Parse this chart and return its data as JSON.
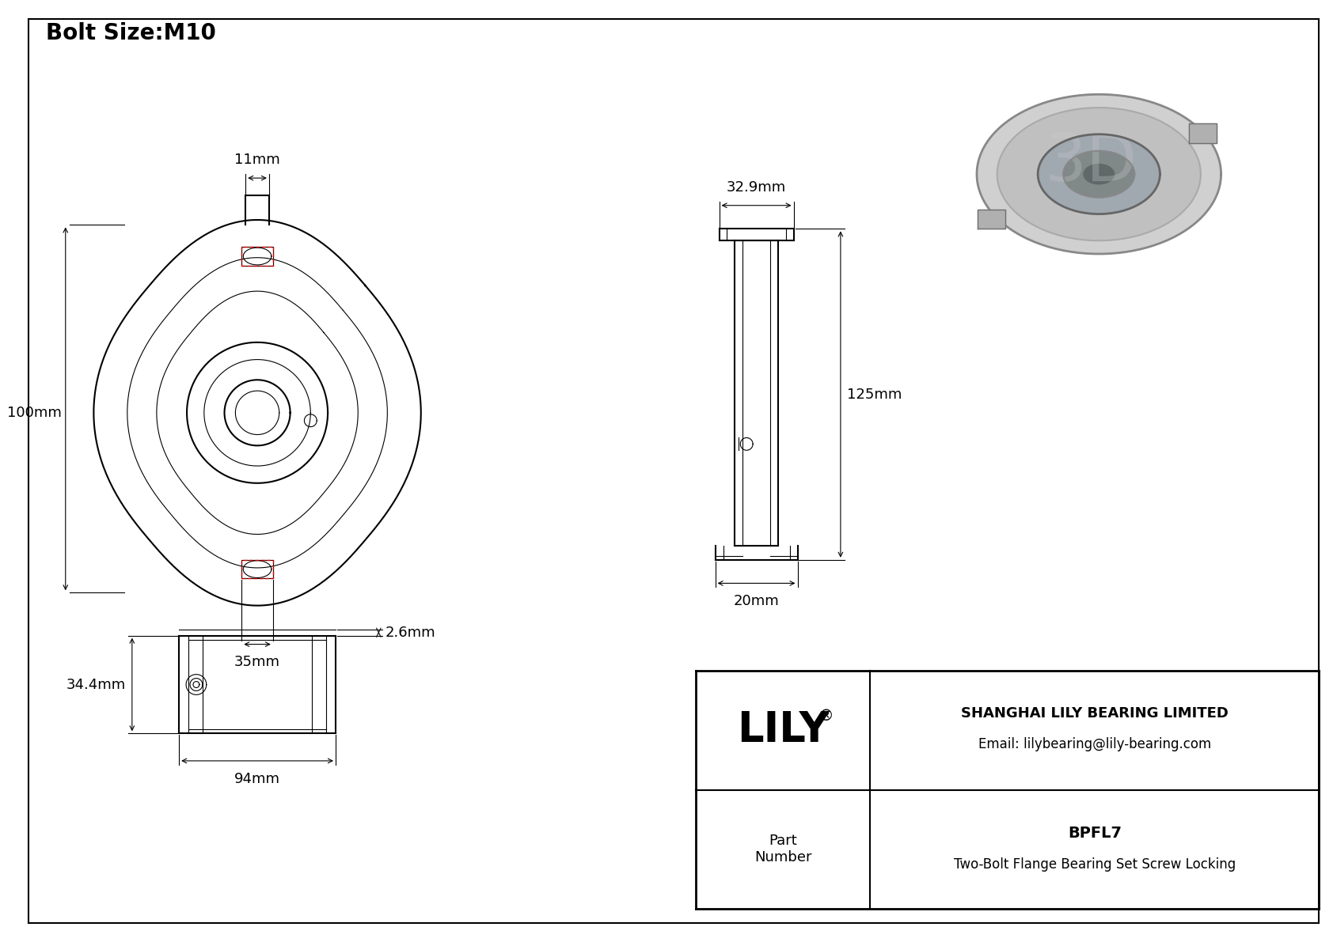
{
  "bg_color": "#ffffff",
  "line_color": "#000000",
  "dim_color": "#000000",
  "red_dash_color": "#cc0000",
  "title": "Bolt Size:M10",
  "title_fontsize": 20,
  "company": "SHANGHAI LILY BEARING LIMITED",
  "email": "Email: lilybearing@lily-bearing.com",
  "part_label": "Part\nNumber",
  "part_number": "BPFL7",
  "part_desc": "Two-Bolt Flange Bearing Set Screw Locking",
  "dim_11": "11mm",
  "dim_100": "100mm",
  "dim_35": "35mm",
  "dim_32_9": "32.9mm",
  "dim_125": "125mm",
  "dim_20": "20mm",
  "dim_94": "94mm",
  "dim_34_4": "34.4mm",
  "dim_2_6": "2.6mm"
}
